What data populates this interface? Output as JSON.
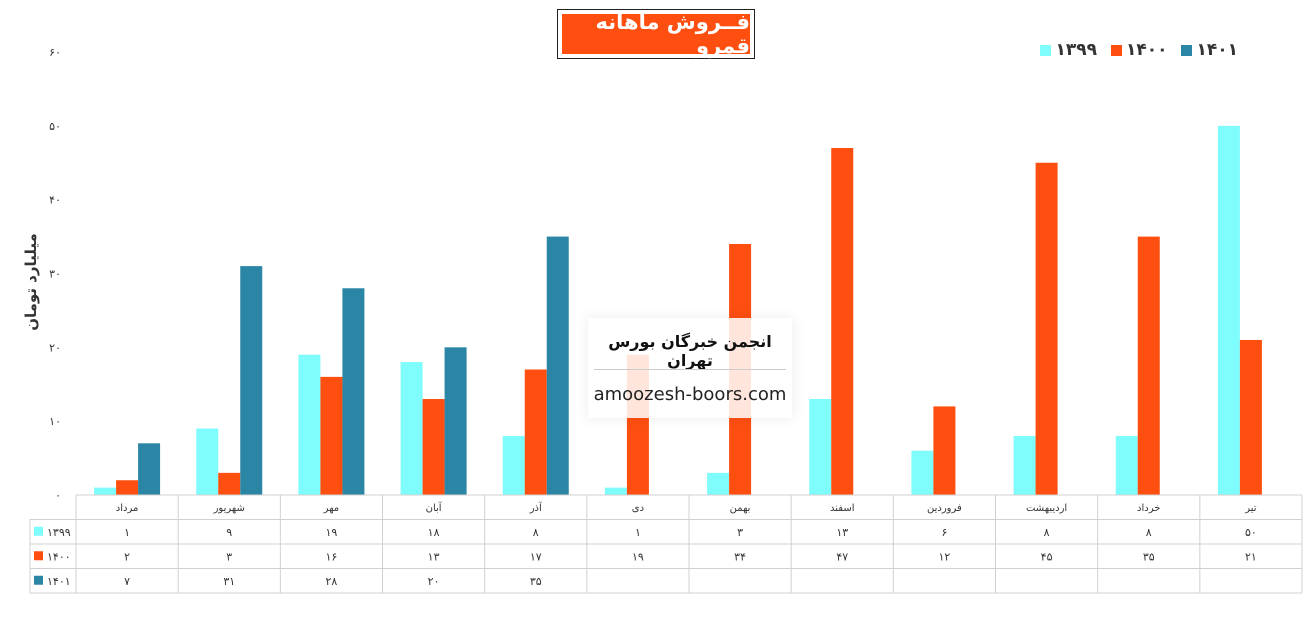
{
  "chart_data": {
    "type": "bar",
    "title": "فــروش ماهانه قمرو",
    "ylabel": "میلیارد تومان",
    "ylim": [
      0,
      60
    ],
    "y_ticks": [
      "۰",
      "۱۰",
      "۲۰",
      "۳۰",
      "۴۰",
      "۵۰",
      "۶۰"
    ],
    "categories": [
      "مرداد",
      "شهریور",
      "مهر",
      "آبان",
      "آذر",
      "دی",
      "بهمن",
      "اسفند",
      "فروردین",
      "اردیبهشت",
      "خرداد",
      "تیر"
    ],
    "series": [
      {
        "name": "۱۳۹۹",
        "color": "#7ffcfc",
        "values": [
          1,
          9,
          19,
          18,
          8,
          1,
          3,
          13,
          6,
          8,
          8,
          50
        ],
        "labels": [
          "۱",
          "۹",
          "۱۹",
          "۱۸",
          "۸",
          "۱",
          "۳",
          "۱۳",
          "۶",
          "۸",
          "۸",
          "۵۰"
        ]
      },
      {
        "name": "۱۴۰۰",
        "color": "#fe4f11",
        "values": [
          2,
          3,
          16,
          13,
          17,
          19,
          34,
          47,
          12,
          45,
          35,
          21
        ],
        "labels": [
          "۲",
          "۳",
          "۱۶",
          "۱۳",
          "۱۷",
          "۱۹",
          "۳۴",
          "۴۷",
          "۱۲",
          "۴۵",
          "۳۵",
          "۲۱"
        ]
      },
      {
        "name": "۱۴۰۱",
        "color": "#2a86a4",
        "values": [
          7,
          31,
          28,
          20,
          35,
          null,
          null,
          null,
          null,
          null,
          null,
          null
        ],
        "labels": [
          "۷",
          "۳۱",
          "۲۸",
          "۲۰",
          "۳۵",
          "",
          "",
          "",
          "",
          "",
          "",
          ""
        ]
      }
    ],
    "legend": "top-right",
    "grid": false,
    "data_table": true
  },
  "watermark": {
    "title": "انجمن خبرگان بورس تهران",
    "url": "amoozesh-boors.com"
  }
}
